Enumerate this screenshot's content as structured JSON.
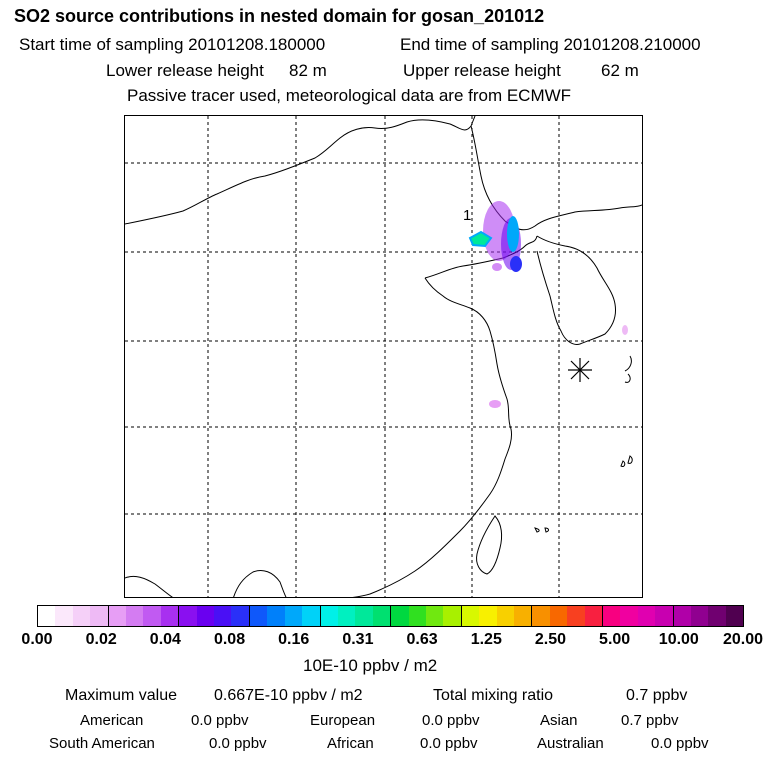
{
  "header": {
    "title": "SO2 source contributions in nested domain for gosan_201012",
    "start_label": "Start time of sampling 20101208.180000",
    "end_label": "End time of sampling 20101208.210000",
    "lower_label": "Lower release height",
    "lower_value": "82 m",
    "upper_label": "Upper release height",
    "upper_value": "62 m",
    "tracer_note": "Passive tracer used, meteorological data are from ECMWF"
  },
  "map": {
    "source_label": "1"
  },
  "colorbar": {
    "colors": [
      "#ffffff",
      "#fbe8fb",
      "#f5d0f8",
      "#eebaf5",
      "#e79ef5",
      "#d47cf2",
      "#c15af2",
      "#a830f0",
      "#8a10f0",
      "#6a00f0",
      "#4a10f5",
      "#2a30f8",
      "#0f58fa",
      "#0080fa",
      "#00a8fa",
      "#00d2f8",
      "#00f0e8",
      "#00f0c0",
      "#00e89a",
      "#00e070",
      "#00d840",
      "#30e020",
      "#70e810",
      "#a8f000",
      "#d8f800",
      "#f8f000",
      "#f8d000",
      "#f8b000",
      "#f89000",
      "#f86800",
      "#f84020",
      "#f82040",
      "#f80080",
      "#f000a0",
      "#e000b0",
      "#c800b0",
      "#b000a8",
      "#900090",
      "#700070",
      "#500050"
    ],
    "ticks": [
      "0.00",
      "0.02",
      "0.04",
      "0.08",
      "0.16",
      "0.31",
      "0.63",
      "1.25",
      "2.50",
      "5.00",
      "10.00",
      "20.00"
    ],
    "unit": "10E-10 ppbv / m2"
  },
  "stats": {
    "max_label": "Maximum value",
    "max_value": "0.667E-10 ppbv / m2",
    "total_label": "Total mixing ratio",
    "total_value": "0.7 ppbv"
  },
  "regions": [
    {
      "name": "American",
      "value": "0.0 ppbv"
    },
    {
      "name": "European",
      "value": "0.0 ppbv"
    },
    {
      "name": "Asian",
      "value": "0.7 ppbv"
    },
    {
      "name": "South American",
      "value": "0.0 ppbv"
    },
    {
      "name": "African",
      "value": "0.0 ppbv"
    },
    {
      "name": "Australian",
      "value": "0.0 ppbv"
    }
  ]
}
